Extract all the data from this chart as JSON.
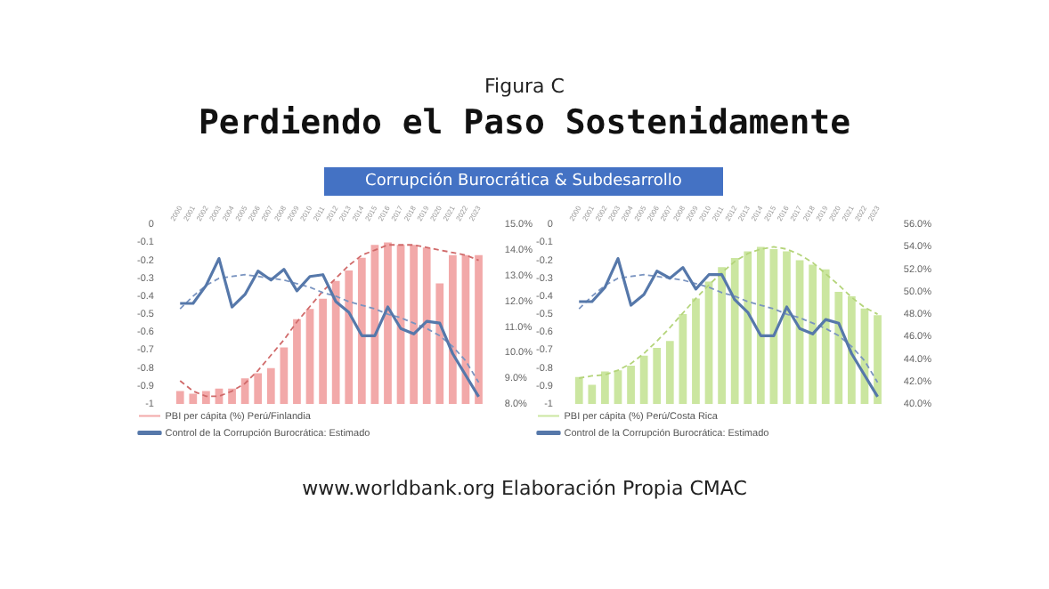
{
  "chart_data": [
    {
      "type": "bar",
      "title": "Perdiendo el Paso Sostenidamente",
      "subtitle": "Corrupción Burocrática & Subdesarrollo",
      "annotations": [
        "Figura C"
      ],
      "categories": [
        "2000",
        "2001",
        "2002",
        "2003",
        "2004",
        "2005",
        "2006",
        "2007",
        "2008",
        "2009",
        "2010",
        "2011",
        "2012",
        "2013",
        "2014",
        "2015",
        "2016",
        "2017",
        "2018",
        "2019",
        "2020",
        "2021",
        "2022",
        "2023"
      ],
      "series": [
        {
          "axis": "y2",
          "name": "PBI per cápita (%) Perú/Finlandia",
          "color": "#f2a9a9",
          "values": [
            8.5,
            8.4,
            8.5,
            8.6,
            8.6,
            9.0,
            9.2,
            9.4,
            10.2,
            11.3,
            11.7,
            12.1,
            12.8,
            13.2,
            13.7,
            14.2,
            14.3,
            14.2,
            14.2,
            14.1,
            12.7,
            13.8,
            13.8,
            13.8
          ]
        },
        {
          "type": "line",
          "name": "Control de la Corrupción Burocrática: Estimado",
          "color": "#5678aa",
          "values": [
            -0.44,
            -0.44,
            -0.34,
            -0.19,
            -0.46,
            -0.39,
            -0.26,
            -0.31,
            -0.25,
            -0.37,
            -0.29,
            -0.28,
            -0.43,
            -0.49,
            -0.62,
            -0.62,
            -0.46,
            -0.58,
            -0.61,
            -0.54,
            -0.55,
            -0.72,
            -0.84,
            -0.96
          ]
        },
        {
          "type": "line",
          "line_style": "dashed",
          "color": "#7a94c0",
          "values": [
            -0.47,
            -0.4,
            -0.34,
            -0.3,
            -0.29,
            -0.28,
            -0.29,
            -0.3,
            -0.31,
            -0.33,
            -0.35,
            -0.38,
            -0.4,
            -0.43,
            -0.45,
            -0.47,
            -0.5,
            -0.52,
            -0.55,
            -0.58,
            -0.62,
            -0.68,
            -0.76,
            -0.88
          ]
        },
        {
          "type": "line",
          "axis": "y2",
          "line_style": "dashed",
          "color": "#d06a6a",
          "values": [
            8.9,
            8.5,
            8.3,
            8.3,
            8.5,
            8.8,
            9.3,
            9.9,
            10.5,
            11.2,
            11.8,
            12.4,
            12.9,
            13.4,
            13.8,
            14.0,
            14.2,
            14.2,
            14.2,
            14.1,
            14.0,
            13.9,
            13.8,
            13.6
          ]
        }
      ],
      "ylim": [
        -1,
        0
      ],
      "yticks": [
        0,
        -0.1,
        -0.2,
        -0.3,
        -0.4,
        -0.5,
        -0.6,
        -0.7,
        -0.8,
        -0.9,
        -1
      ],
      "y2lim": [
        8,
        15
      ],
      "y2ticks": [
        {
          "value": 8,
          "label": "8.0%"
        },
        {
          "value": 9,
          "label": "9.0%"
        },
        {
          "value": 10,
          "label": "10.0%"
        },
        {
          "value": 11,
          "label": "11.0%"
        },
        {
          "value": 12,
          "label": "12.0%"
        },
        {
          "value": 13,
          "label": "13.0%"
        },
        {
          "value": 14,
          "label": "14.0%"
        },
        {
          "value": 15,
          "label": "15.0%"
        }
      ],
      "legend": "bottom",
      "grid": false,
      "marker": "none"
    },
    {
      "type": "bar",
      "annotations": [
        "www.worldbank.org Elaboración Propia CMAC"
      ],
      "categories": [
        "2000",
        "2001",
        "2002",
        "2003",
        "2004",
        "2005",
        "2006",
        "2007",
        "2008",
        "2009",
        "2010",
        "2011",
        "2012",
        "2013",
        "2014",
        "2015",
        "2016",
        "2017",
        "2018",
        "2019",
        "2020",
        "2021",
        "2022",
        "2023"
      ],
      "series": [
        {
          "axis": "y2",
          "name": "PBI per cápita (%) Perú/Costa Rica",
          "color": "#cbe6a0",
          "values": [
            42.4,
            41.7,
            42.9,
            43.0,
            43.4,
            44.3,
            45.0,
            45.6,
            48.0,
            49.4,
            50.9,
            52.2,
            53.0,
            53.6,
            54.0,
            53.8,
            53.6,
            52.8,
            52.4,
            52.0,
            50.0,
            49.6,
            48.5,
            47.9
          ]
        },
        {
          "type": "line",
          "name": "Control de la Corrupción Burocrática: Estimado",
          "color": "#5678aa",
          "values": [
            -0.43,
            -0.43,
            -0.35,
            -0.19,
            -0.45,
            -0.39,
            -0.26,
            -0.3,
            -0.24,
            -0.36,
            -0.28,
            -0.28,
            -0.42,
            -0.49,
            -0.62,
            -0.62,
            -0.46,
            -0.58,
            -0.61,
            -0.53,
            -0.55,
            -0.72,
            -0.84,
            -0.96
          ]
        },
        {
          "type": "line",
          "line_style": "dashed",
          "color": "#7a94c0",
          "values": [
            -0.47,
            -0.4,
            -0.34,
            -0.3,
            -0.29,
            -0.28,
            -0.29,
            -0.3,
            -0.31,
            -0.33,
            -0.35,
            -0.38,
            -0.4,
            -0.43,
            -0.45,
            -0.47,
            -0.5,
            -0.52,
            -0.55,
            -0.58,
            -0.62,
            -0.68,
            -0.76,
            -0.88
          ]
        },
        {
          "type": "line",
          "axis": "y2",
          "line_style": "dashed",
          "color": "#b4d47a",
          "values": [
            42.3,
            42.5,
            42.6,
            43.0,
            43.6,
            44.5,
            45.6,
            46.8,
            48.1,
            49.4,
            50.6,
            51.7,
            52.7,
            53.4,
            53.8,
            54.0,
            53.8,
            53.3,
            52.6,
            51.6,
            50.6,
            49.5,
            48.6,
            48.0
          ]
        }
      ],
      "ylim": [
        -1,
        0
      ],
      "yticks": [
        0,
        -0.1,
        -0.2,
        -0.3,
        -0.4,
        -0.5,
        -0.6,
        -0.7,
        -0.8,
        -0.9,
        -1
      ],
      "y2lim": [
        40,
        56
      ],
      "y2ticks": [
        {
          "value": 40,
          "label": "40.0%"
        },
        {
          "value": 42,
          "label": "42.0%"
        },
        {
          "value": 44,
          "label": "44.0%"
        },
        {
          "value": 46,
          "label": "46.0%"
        },
        {
          "value": 48,
          "label": "48.0%"
        },
        {
          "value": 50,
          "label": "50.0%"
        },
        {
          "value": 52,
          "label": "52.0%"
        },
        {
          "value": 54,
          "label": "54.0%"
        },
        {
          "value": 56,
          "label": "56.0%"
        }
      ],
      "legend": "bottom",
      "grid": false,
      "marker": "none"
    }
  ]
}
